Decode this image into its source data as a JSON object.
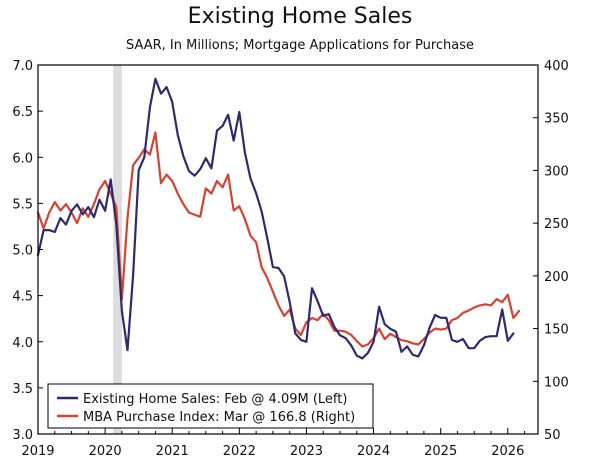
{
  "chart_data": {
    "type": "line",
    "title": "Existing Home Sales",
    "subtitle": "SAAR, In Millions; Mortgage Applications for Purchase",
    "x_ticks": [
      "2019",
      "2020",
      "2021",
      "2022",
      "2023",
      "2024",
      "2025",
      "2026"
    ],
    "xlim": [
      2019.0,
      2026.45
    ],
    "y_left": {
      "ylim": [
        3.0,
        7.0
      ],
      "ticks": [
        "3.0",
        "3.5",
        "4.0",
        "4.5",
        "5.0",
        "5.5",
        "6.0",
        "6.5",
        "7.0"
      ]
    },
    "y_right": {
      "ylim": [
        50,
        400
      ],
      "ticks": [
        "50",
        "100",
        "150",
        "200",
        "250",
        "300",
        "350",
        "400"
      ]
    },
    "recession_band": [
      2020.12,
      2020.25
    ],
    "series": [
      {
        "name": "Existing Home Sales",
        "legend_label": "Existing Home Sales: Feb @ 4.09M (Left)",
        "axis": "left",
        "color": "#2e2a6e",
        "start": 2019.0,
        "step": 0.08333,
        "values": [
          4.94,
          5.21,
          5.21,
          5.19,
          5.34,
          5.27,
          5.42,
          5.49,
          5.38,
          5.46,
          5.35,
          5.54,
          5.42,
          5.76,
          5.27,
          4.33,
          3.91,
          4.72,
          5.86,
          6.0,
          6.54,
          6.85,
          6.69,
          6.76,
          6.6,
          6.24,
          6.01,
          5.85,
          5.8,
          5.87,
          5.99,
          5.88,
          6.29,
          6.34,
          6.46,
          6.18,
          6.49,
          6.05,
          5.77,
          5.61,
          5.41,
          5.12,
          4.81,
          4.8,
          4.71,
          4.43,
          4.09,
          4.02,
          4.0,
          4.58,
          4.44,
          4.28,
          4.3,
          4.16,
          4.07,
          4.04,
          3.96,
          3.85,
          3.82,
          3.88,
          4.0,
          4.38,
          4.19,
          4.14,
          4.11,
          3.89,
          3.95,
          3.86,
          3.84,
          3.96,
          4.15,
          4.29,
          4.26,
          4.26,
          4.02,
          4.0,
          4.03,
          3.93,
          3.93,
          4.01,
          4.05,
          4.06,
          4.06,
          4.35,
          4.01,
          4.09
        ],
        "end_label": "Feb @ 4.09M"
      },
      {
        "name": "MBA Purchase Index",
        "legend_label": "MBA Purchase Index: Mar @ 166.8 (Right)",
        "axis": "right",
        "color": "#d8412f",
        "start": 2019.0,
        "step": 0.08333,
        "values": [
          260,
          245,
          260,
          270,
          262,
          268,
          260,
          250,
          264,
          256,
          268,
          282,
          290,
          278,
          265,
          178,
          255,
          305,
          312,
          320,
          315,
          336,
          288,
          296,
          290,
          278,
          268,
          260,
          258,
          256,
          283,
          278,
          290,
          284,
          296,
          262,
          266,
          254,
          238,
          232,
          208,
          198,
          185,
          172,
          162,
          168,
          150,
          144,
          156,
          160,
          158,
          164,
          158,
          148,
          148,
          147,
          144,
          138,
          133,
          135,
          141,
          150,
          140,
          145,
          142,
          139,
          138,
          136,
          135,
          140,
          146,
          150,
          149,
          150,
          158,
          160,
          165,
          167,
          170,
          172,
          173,
          172,
          178,
          175,
          182,
          160,
          166.8
        ],
        "end_label": "Mar @ 166.8"
      }
    ]
  }
}
